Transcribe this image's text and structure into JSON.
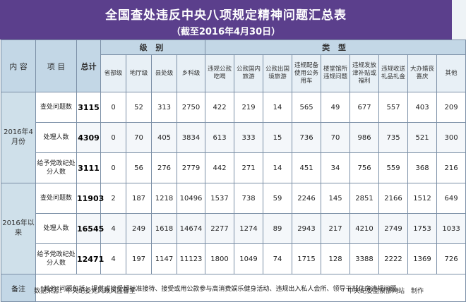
{
  "header": {
    "title": "全国查处违反中央八项规定精神问题汇总表",
    "subtitle": "（截至2016年4月30日）"
  },
  "table": {
    "col_content": "内 容",
    "col_item": "项 目",
    "col_total": "总计",
    "group_level": "级 别",
    "group_type": "类 型",
    "levels": [
      "省部级",
      "地厅级",
      "县处级",
      "乡科级"
    ],
    "types": [
      "违规公款吃喝",
      "公款国内旅游",
      "公款出国境旅游",
      "违规配备使用公务用车",
      "楼堂馆所违规问题",
      "违规发放津补贴或福利",
      "违规收送礼品礼金",
      "大办婚丧喜庆",
      "其他"
    ],
    "sections": [
      {
        "label": "2016年4月份",
        "rows": [
          {
            "item": "查处问题数",
            "total": "3115",
            "levels": [
              "0",
              "52",
              "313",
              "2750"
            ],
            "types": [
              "422",
              "219",
              "14",
              "565",
              "49",
              "677",
              "557",
              "403",
              "209"
            ]
          },
          {
            "item": "处理人数",
            "total": "4309",
            "levels": [
              "0",
              "70",
              "405",
              "3834"
            ],
            "types": [
              "613",
              "333",
              "15",
              "736",
              "70",
              "986",
              "735",
              "521",
              "300"
            ]
          },
          {
            "item": "给予党政纪处分人数",
            "total": "3111",
            "levels": [
              "0",
              "56",
              "276",
              "2779"
            ],
            "types": [
              "442",
              "271",
              "14",
              "451",
              "34",
              "756",
              "559",
              "368",
              "216"
            ]
          }
        ]
      },
      {
        "label": "2016年以来",
        "rows": [
          {
            "item": "查处问题数",
            "total": "11903",
            "levels": [
              "2",
              "187",
              "1218",
              "10496"
            ],
            "types": [
              "1537",
              "738",
              "59",
              "2246",
              "145",
              "2851",
              "2166",
              "1512",
              "649"
            ]
          },
          {
            "item": "处理人数",
            "total": "16545",
            "levels": [
              "4",
              "249",
              "1618",
              "14674"
            ],
            "types": [
              "2277",
              "1274",
              "89",
              "2943",
              "217",
              "4210",
              "2749",
              "1753",
              "1033"
            ]
          },
          {
            "item": "给予党政纪处分人数",
            "total": "12471",
            "levels": [
              "4",
              "197",
              "1147",
              "11123"
            ],
            "types": [
              "1800",
              "1049",
              "74",
              "1715",
              "128",
              "3388",
              "2222",
              "1369",
              "726"
            ]
          }
        ]
      }
    ],
    "note_label": "备注",
    "note_text": "“其他”问题包括：提供或接受超标准接待、接受或用公款参与高消费娱乐健身活动、违规出入私人会所、领导干部住房违规问题。"
  },
  "footer": {
    "source": "数据来源：中央纪委党风政风监督室",
    "maker": "中央纪委监察部网站　制作"
  }
}
